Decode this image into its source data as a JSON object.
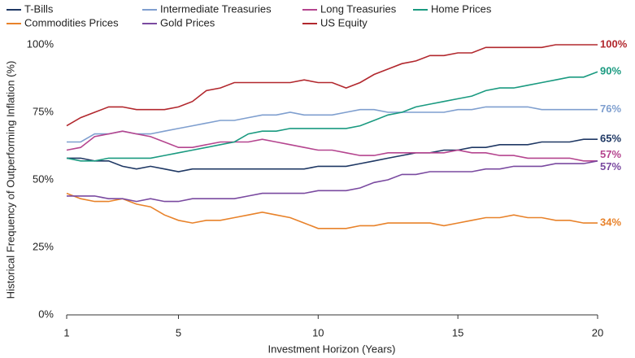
{
  "chart_data": {
    "type": "line",
    "y_label": "Historical Frequency of Outperforming Inflation (%)",
    "x_label": "Investment Horizon (Years)",
    "x": [
      1,
      1.5,
      2,
      2.5,
      3,
      3.5,
      4,
      4.5,
      5,
      5.5,
      6,
      6.5,
      7,
      7.5,
      8,
      8.5,
      9,
      9.5,
      10,
      10.5,
      11,
      11.5,
      12,
      12.5,
      13,
      13.5,
      14,
      14.5,
      15,
      15.5,
      16,
      16.5,
      17,
      17.5,
      18,
      18.5,
      19,
      19.5,
      20
    ],
    "xlim": [
      1,
      20
    ],
    "xticks": [
      1,
      5,
      10,
      15,
      20
    ],
    "ylim": [
      0,
      100
    ],
    "yticks": [
      {
        "value": 0,
        "label": "0%"
      },
      {
        "value": 25,
        "label": "25%"
      },
      {
        "value": 50,
        "label": "50%"
      },
      {
        "value": 75,
        "label": "75%"
      },
      {
        "value": 100,
        "label": "100%"
      }
    ],
    "series": [
      {
        "name": "T-Bills",
        "color": "#1f3864",
        "values": [
          58,
          58,
          57,
          57,
          55,
          54,
          55,
          54,
          53,
          54,
          54,
          54,
          54,
          54,
          54,
          54,
          54,
          54,
          55,
          55,
          55,
          56,
          57,
          58,
          59,
          60,
          60,
          61,
          61,
          62,
          62,
          63,
          63,
          63,
          64,
          64,
          64,
          65,
          65
        ],
        "value_labels": [
          null,
          null,
          null,
          null,
          null,
          null,
          null,
          null,
          null,
          null,
          null,
          null,
          null,
          null,
          null,
          null,
          null,
          null,
          null,
          null,
          null,
          null,
          null,
          null,
          null,
          null,
          null,
          null,
          null,
          null,
          null,
          null,
          null,
          null,
          null,
          null,
          null,
          null,
          "65%"
        ]
      },
      {
        "name": "Intermediate Treasuries",
        "color": "#7f9fcf",
        "values": [
          64,
          64,
          67,
          67,
          68,
          67,
          67,
          68,
          69,
          70,
          71,
          72,
          72,
          73,
          74,
          74,
          75,
          74,
          74,
          74,
          75,
          76,
          76,
          75,
          75,
          75,
          75,
          75,
          76,
          76,
          77,
          77,
          77,
          77,
          76,
          76,
          76,
          76,
          76
        ],
        "value_labels": [
          null,
          null,
          null,
          null,
          null,
          null,
          null,
          null,
          null,
          null,
          null,
          null,
          null,
          null,
          null,
          null,
          null,
          null,
          null,
          null,
          null,
          null,
          null,
          null,
          null,
          null,
          null,
          null,
          null,
          null,
          null,
          null,
          null,
          null,
          null,
          null,
          null,
          null,
          "76%"
        ]
      },
      {
        "name": "Long Treasuries",
        "color": "#b5458f",
        "values": [
          61,
          62,
          66,
          67,
          68,
          67,
          66,
          64,
          62,
          62,
          63,
          64,
          64,
          64,
          65,
          64,
          63,
          62,
          61,
          61,
          60,
          59,
          59,
          60,
          60,
          60,
          60,
          60,
          61,
          60,
          60,
          59,
          59,
          58,
          58,
          58,
          58,
          57,
          57
        ],
        "value_labels": [
          null,
          null,
          null,
          null,
          null,
          null,
          null,
          null,
          null,
          null,
          null,
          null,
          null,
          null,
          null,
          null,
          null,
          null,
          null,
          null,
          null,
          null,
          null,
          null,
          null,
          null,
          null,
          null,
          null,
          null,
          null,
          null,
          null,
          null,
          null,
          null,
          null,
          null,
          "57%"
        ]
      },
      {
        "name": "Home Prices",
        "color": "#1a9a80",
        "values": [
          58,
          57,
          57,
          58,
          58,
          58,
          58,
          59,
          60,
          61,
          62,
          63,
          64,
          67,
          68,
          68,
          69,
          69,
          69,
          69,
          69,
          70,
          72,
          74,
          75,
          77,
          78,
          79,
          80,
          81,
          83,
          84,
          84,
          85,
          86,
          87,
          88,
          88,
          90
        ],
        "value_labels": [
          null,
          null,
          null,
          null,
          null,
          null,
          null,
          null,
          null,
          null,
          null,
          null,
          null,
          null,
          null,
          null,
          null,
          null,
          null,
          null,
          null,
          null,
          null,
          null,
          null,
          null,
          null,
          null,
          null,
          null,
          null,
          null,
          null,
          null,
          null,
          null,
          null,
          null,
          "90%"
        ]
      },
      {
        "name": "Commodities Prices",
        "color": "#e8822a",
        "values": [
          45,
          43,
          42,
          42,
          43,
          41,
          40,
          37,
          35,
          34,
          35,
          35,
          36,
          37,
          38,
          37,
          36,
          34,
          32,
          32,
          32,
          33,
          33,
          34,
          34,
          34,
          34,
          33,
          34,
          35,
          36,
          36,
          37,
          36,
          36,
          35,
          35,
          34,
          34
        ],
        "value_labels": [
          null,
          null,
          null,
          null,
          null,
          null,
          null,
          null,
          null,
          null,
          null,
          null,
          null,
          null,
          null,
          null,
          null,
          null,
          null,
          null,
          null,
          null,
          null,
          null,
          null,
          null,
          null,
          null,
          null,
          null,
          null,
          null,
          null,
          null,
          null,
          null,
          null,
          null,
          "34%"
        ]
      },
      {
        "name": "Gold Prices",
        "color": "#7a4aa0",
        "values": [
          44,
          44,
          44,
          43,
          43,
          42,
          43,
          42,
          42,
          43,
          43,
          43,
          43,
          44,
          45,
          45,
          45,
          45,
          46,
          46,
          46,
          47,
          49,
          50,
          52,
          52,
          53,
          53,
          53,
          53,
          54,
          54,
          55,
          55,
          55,
          56,
          56,
          56,
          57
        ],
        "value_labels": [
          null,
          null,
          null,
          null,
          null,
          null,
          null,
          null,
          null,
          null,
          null,
          null,
          null,
          null,
          null,
          null,
          null,
          null,
          null,
          null,
          null,
          null,
          null,
          null,
          null,
          null,
          null,
          null,
          null,
          null,
          null,
          null,
          null,
          null,
          null,
          null,
          null,
          null,
          "57%"
        ]
      },
      {
        "name": "US Equity",
        "color": "#b2282e",
        "values": [
          70,
          73,
          75,
          77,
          77,
          76,
          76,
          76,
          77,
          79,
          83,
          84,
          86,
          86,
          86,
          86,
          86,
          87,
          86,
          86,
          84,
          86,
          89,
          91,
          93,
          94,
          96,
          96,
          97,
          97,
          99,
          99,
          99,
          99,
          99,
          100,
          100,
          100,
          100
        ],
        "value_labels": [
          null,
          null,
          null,
          null,
          null,
          null,
          null,
          null,
          null,
          null,
          null,
          null,
          null,
          null,
          null,
          null,
          null,
          null,
          null,
          null,
          null,
          null,
          null,
          null,
          null,
          null,
          null,
          null,
          null,
          null,
          null,
          null,
          null,
          null,
          null,
          null,
          null,
          null,
          "100%"
        ]
      }
    ]
  }
}
